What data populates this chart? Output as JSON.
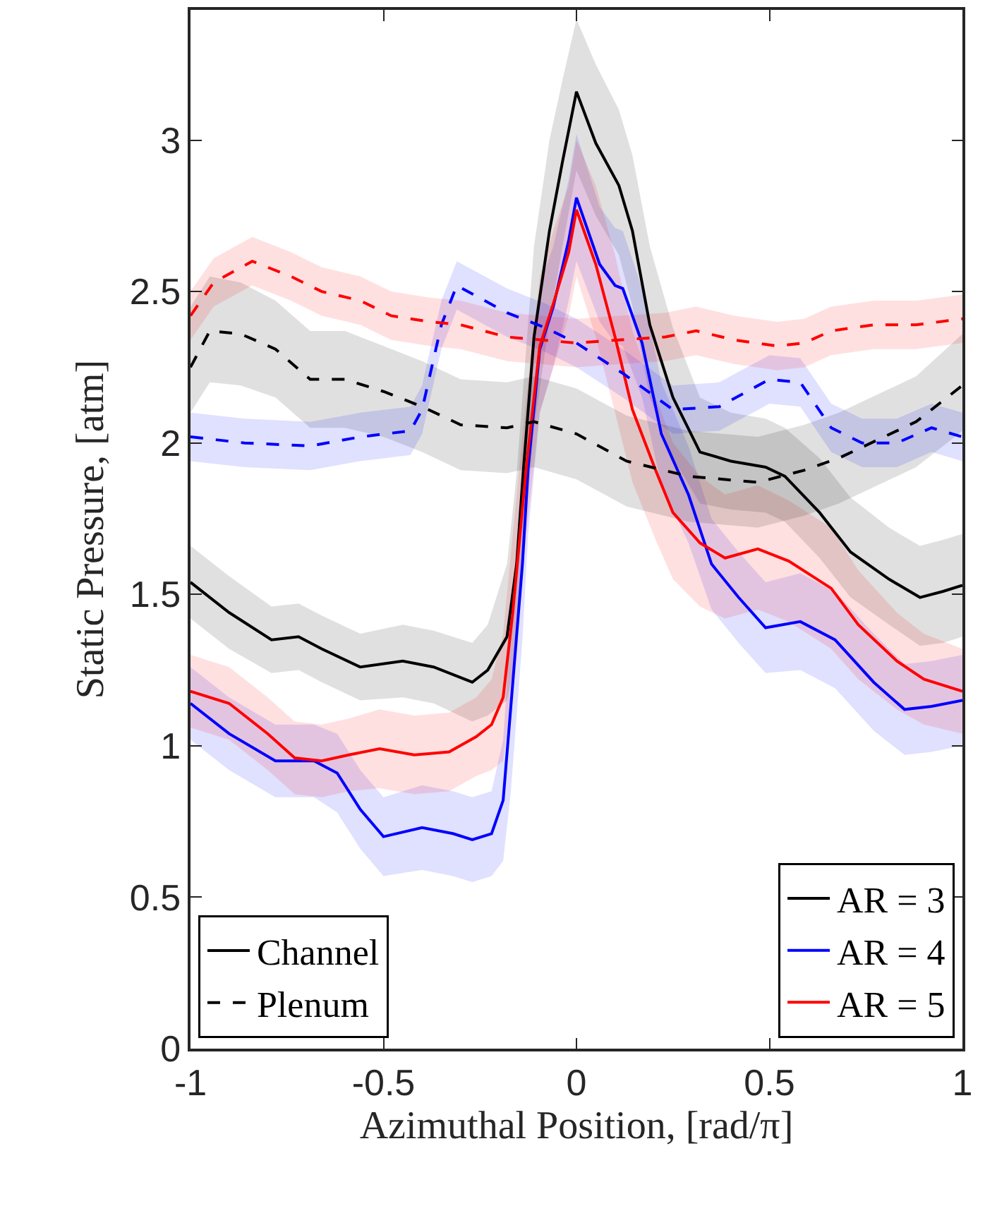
{
  "chart_data": {
    "type": "line",
    "xlabel": "Azimuthal Position, [rad/π]",
    "ylabel": "Static Pressure, [atm]",
    "xlim": [
      -1,
      1
    ],
    "xticks": [
      -1,
      -0.5,
      0,
      0.5,
      1
    ],
    "ylim": [
      0,
      3.43
    ],
    "yticks": [
      0,
      0.5,
      1,
      1.5,
      2,
      2.5,
      3
    ],
    "legend": "bottom right",
    "marker": "none",
    "series": [
      {
        "name": "AR = 3",
        "color": "#000000",
        "line_style": "solid",
        "x": [
          -1,
          -0.9,
          -0.79,
          -0.72,
          -0.66,
          -0.56,
          -0.45,
          -0.37,
          -0.27,
          -0.23,
          -0.18,
          -0.155,
          -0.137,
          -0.11,
          -0.07,
          -0.036,
          0,
          0.05,
          0.11,
          0.145,
          0.19,
          0.25,
          0.32,
          0.4,
          0.49,
          0.54,
          0.63,
          0.71,
          0.81,
          0.89,
          0.95,
          1.0
        ],
        "values": [
          1.54,
          1.44,
          1.35,
          1.36,
          1.32,
          1.26,
          1.28,
          1.26,
          1.21,
          1.25,
          1.36,
          1.6,
          1.92,
          2.35,
          2.7,
          2.93,
          3.16,
          2.99,
          2.85,
          2.7,
          2.39,
          2.15,
          1.97,
          1.94,
          1.92,
          1.89,
          1.77,
          1.64,
          1.55,
          1.49,
          1.51,
          1.53
        ],
        "lower": [
          1.42,
          1.32,
          1.24,
          1.25,
          1.21,
          1.15,
          1.16,
          1.14,
          1.08,
          1.1,
          1.15,
          1.3,
          1.65,
          2.05,
          2.4,
          2.65,
          2.9,
          2.75,
          2.62,
          2.45,
          2.15,
          1.95,
          1.8,
          1.78,
          1.77,
          1.74,
          1.62,
          1.49,
          1.4,
          1.33,
          1.34,
          1.36
        ],
        "upper": [
          1.66,
          1.56,
          1.46,
          1.47,
          1.43,
          1.37,
          1.4,
          1.38,
          1.34,
          1.4,
          1.6,
          1.9,
          2.2,
          2.65,
          3.0,
          3.2,
          3.4,
          3.25,
          3.1,
          2.95,
          2.65,
          2.38,
          2.15,
          2.1,
          2.08,
          2.05,
          1.95,
          1.82,
          1.72,
          1.66,
          1.68,
          1.7
        ]
      },
      {
        "name": "AR = 4",
        "color": "#0000ff",
        "line_style": "solid",
        "x": [
          -1,
          -0.9,
          -0.78,
          -0.68,
          -0.62,
          -0.56,
          -0.5,
          -0.4,
          -0.32,
          -0.27,
          -0.22,
          -0.19,
          -0.17,
          -0.14,
          -0.125,
          -0.095,
          -0.06,
          -0.02,
          0,
          0.06,
          0.1,
          0.12,
          0.17,
          0.22,
          0.29,
          0.35,
          0.42,
          0.49,
          0.58,
          0.67,
          0.77,
          0.85,
          0.92,
          1.0
        ],
        "values": [
          1.14,
          1.04,
          0.95,
          0.95,
          0.91,
          0.79,
          0.7,
          0.73,
          0.71,
          0.69,
          0.71,
          0.82,
          1.13,
          1.6,
          1.92,
          2.31,
          2.45,
          2.67,
          2.81,
          2.59,
          2.52,
          2.51,
          2.33,
          2.03,
          1.83,
          1.6,
          1.49,
          1.39,
          1.41,
          1.35,
          1.21,
          1.12,
          1.13,
          1.15
        ],
        "lower": [
          1.02,
          0.92,
          0.83,
          0.83,
          0.78,
          0.66,
          0.57,
          0.59,
          0.57,
          0.55,
          0.57,
          0.62,
          0.85,
          1.35,
          1.7,
          2.1,
          2.25,
          2.47,
          2.6,
          2.4,
          2.33,
          2.32,
          2.15,
          1.86,
          1.67,
          1.45,
          1.34,
          1.24,
          1.25,
          1.19,
          1.05,
          0.97,
          0.98,
          1.0
        ],
        "upper": [
          1.26,
          1.16,
          1.07,
          1.07,
          1.04,
          0.92,
          0.83,
          0.87,
          0.85,
          0.83,
          0.85,
          1.02,
          1.4,
          1.85,
          2.14,
          2.52,
          2.65,
          2.87,
          3.02,
          2.78,
          2.71,
          2.7,
          2.51,
          2.2,
          1.99,
          1.75,
          1.64,
          1.54,
          1.57,
          1.51,
          1.37,
          1.27,
          1.28,
          1.3
        ]
      },
      {
        "name": "AR = 5",
        "color": "#ff0000",
        "line_style": "solid",
        "x": [
          -1,
          -0.9,
          -0.8,
          -0.73,
          -0.66,
          -0.59,
          -0.51,
          -0.42,
          -0.33,
          -0.26,
          -0.22,
          -0.19,
          -0.165,
          -0.13,
          -0.095,
          -0.06,
          -0.02,
          0,
          0.05,
          0.1,
          0.145,
          0.205,
          0.25,
          0.32,
          0.385,
          0.47,
          0.55,
          0.66,
          0.73,
          0.83,
          0.9,
          1.0
        ],
        "values": [
          1.18,
          1.14,
          1.04,
          0.96,
          0.95,
          0.97,
          0.99,
          0.97,
          0.98,
          1.03,
          1.07,
          1.16,
          1.44,
          1.92,
          2.32,
          2.46,
          2.63,
          2.77,
          2.59,
          2.35,
          2.11,
          1.91,
          1.77,
          1.67,
          1.62,
          1.65,
          1.61,
          1.52,
          1.4,
          1.28,
          1.22,
          1.18
        ],
        "lower": [
          1.06,
          1.02,
          0.92,
          0.84,
          0.83,
          0.85,
          0.86,
          0.84,
          0.85,
          0.9,
          0.92,
          0.95,
          1.2,
          1.7,
          2.1,
          2.25,
          2.42,
          2.55,
          2.35,
          2.1,
          1.87,
          1.68,
          1.55,
          1.46,
          1.42,
          1.45,
          1.41,
          1.32,
          1.22,
          1.12,
          1.07,
          1.04
        ],
        "upper": [
          1.3,
          1.26,
          1.16,
          1.08,
          1.07,
          1.09,
          1.12,
          1.1,
          1.11,
          1.16,
          1.22,
          1.37,
          1.7,
          2.15,
          2.55,
          2.7,
          2.85,
          3.0,
          2.85,
          2.62,
          2.37,
          2.15,
          2.0,
          1.89,
          1.83,
          1.86,
          1.81,
          1.72,
          1.58,
          1.44,
          1.37,
          1.32
        ]
      },
      {
        "color": "#000000",
        "line_style": "dashed",
        "x": [
          -1,
          -0.95,
          -0.87,
          -0.78,
          -0.69,
          -0.6,
          -0.5,
          -0.4,
          -0.3,
          -0.18,
          -0.11,
          0,
          0.13,
          0.29,
          0.47,
          0.59,
          0.68,
          0.78,
          0.88,
          1.0
        ],
        "values": [
          2.25,
          2.37,
          2.36,
          2.31,
          2.21,
          2.21,
          2.17,
          2.12,
          2.06,
          2.05,
          2.07,
          2.03,
          1.94,
          1.89,
          1.87,
          1.91,
          1.95,
          2.01,
          2.07,
          2.19
        ],
        "lower": [
          2.1,
          2.2,
          2.19,
          2.15,
          2.05,
          2.05,
          2.02,
          1.97,
          1.91,
          1.9,
          1.92,
          1.88,
          1.79,
          1.74,
          1.72,
          1.76,
          1.8,
          1.86,
          1.92,
          2.04
        ],
        "upper": [
          2.45,
          2.55,
          2.53,
          2.47,
          2.37,
          2.37,
          2.32,
          2.27,
          2.21,
          2.2,
          2.22,
          2.18,
          2.09,
          2.04,
          2.02,
          2.06,
          2.1,
          2.16,
          2.22,
          2.36
        ]
      },
      {
        "color": "#0000ff",
        "line_style": "dashed",
        "x": [
          -1,
          -0.86,
          -0.69,
          -0.56,
          -0.43,
          -0.4,
          -0.35,
          -0.31,
          -0.18,
          -0.08,
          0,
          0.12,
          0.25,
          0.37,
          0.5,
          0.58,
          0.66,
          0.74,
          0.83,
          0.92,
          1.0
        ],
        "values": [
          2.02,
          2.0,
          1.99,
          2.02,
          2.04,
          2.11,
          2.39,
          2.52,
          2.43,
          2.38,
          2.33,
          2.23,
          2.11,
          2.12,
          2.21,
          2.2,
          2.05,
          2.0,
          2.0,
          2.05,
          2.02
        ],
        "lower": [
          1.94,
          1.92,
          1.91,
          1.94,
          1.96,
          2.03,
          2.31,
          2.44,
          2.35,
          2.3,
          2.25,
          2.15,
          2.03,
          2.04,
          2.13,
          2.12,
          1.97,
          1.92,
          1.92,
          1.97,
          1.94
        ],
        "upper": [
          2.1,
          2.08,
          2.07,
          2.1,
          2.12,
          2.19,
          2.47,
          2.6,
          2.51,
          2.46,
          2.41,
          2.31,
          2.19,
          2.2,
          2.29,
          2.28,
          2.13,
          2.08,
          2.08,
          2.13,
          2.1
        ]
      },
      {
        "color": "#ff0000",
        "line_style": "dashed",
        "x": [
          -1,
          -0.94,
          -0.84,
          -0.74,
          -0.66,
          -0.56,
          -0.48,
          -0.38,
          -0.3,
          -0.18,
          0,
          0.11,
          0.23,
          0.31,
          0.41,
          0.52,
          0.59,
          0.66,
          0.77,
          0.88,
          1.0
        ],
        "values": [
          2.42,
          2.53,
          2.6,
          2.55,
          2.5,
          2.47,
          2.42,
          2.4,
          2.39,
          2.35,
          2.33,
          2.34,
          2.35,
          2.37,
          2.34,
          2.32,
          2.33,
          2.37,
          2.39,
          2.39,
          2.41
        ],
        "lower": [
          2.34,
          2.45,
          2.52,
          2.47,
          2.42,
          2.39,
          2.34,
          2.32,
          2.31,
          2.27,
          2.25,
          2.26,
          2.27,
          2.29,
          2.26,
          2.24,
          2.25,
          2.29,
          2.31,
          2.31,
          2.33
        ],
        "upper": [
          2.5,
          2.61,
          2.68,
          2.63,
          2.58,
          2.55,
          2.5,
          2.48,
          2.47,
          2.43,
          2.41,
          2.42,
          2.43,
          2.45,
          2.42,
          2.4,
          2.41,
          2.45,
          2.47,
          2.47,
          2.49
        ]
      },
      {
        "name": "Channel",
        "color": "#000000",
        "line_style": "solid"
      },
      {
        "name": "Plenum",
        "color": "#000000",
        "line_style": "dashed"
      }
    ]
  }
}
